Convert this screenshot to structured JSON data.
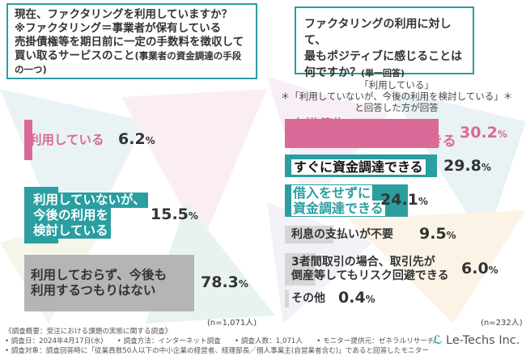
{
  "question_left": {
    "line1": "現在、ファクタリングを利用していますか？",
    "line2": "※ファクタリング＝事業者が保有している",
    "line3": "売掛債権等を期日前に一定の手数料を徴収して",
    "line4": "買い取るサービスのこと",
    "line4_note": "(事業者の資金調達の手段の一つ)"
  },
  "question_right": {
    "line1": "ファクタリングの利用に対して、",
    "line2": "最もポジティブに感じることは",
    "line3": "何ですか？",
    "line3_note": "(単一回答)"
  },
  "subtitle": {
    "line1": "「利用している」",
    "line2": "「利用していないが、今後の利用を検討している」",
    "line3": "と回答した方が回答"
  },
  "n_left": "(n=1,071人)",
  "n_right": "(n=232人)",
  "colors": {
    "pink": "#d96a98",
    "teal": "#2a9ea0",
    "gray": "#b5b5b5",
    "lightgray": "#d6d6d6",
    "accent_bg": "#e7f2f1"
  },
  "chart_data": [
    {
      "type": "bar",
      "categories": [
        "利用している",
        "利用していないが、今後の利用を検討している",
        "利用しておらず、今後も利用するつもりはない"
      ],
      "values": [
        6.2,
        15.5,
        78.3
      ],
      "value_labels": [
        "6.2%",
        "15.5%",
        "78.3%"
      ],
      "unit": "%",
      "n": "(n=1,071人)"
    },
    {
      "type": "bar",
      "categories": [
        "売掛債権の未回収リスクを回避できる",
        "すぐに資金調達できる",
        "借入をせずに資金調達できる",
        "利息の支払いが不要",
        "3者間取引の場合、取引先が倒産等してもリスク回避できる",
        "その他"
      ],
      "values": [
        30.2,
        29.8,
        24.1,
        9.5,
        6.0,
        0.4
      ],
      "value_labels": [
        "30.2%",
        "29.8%",
        "24.1%",
        "9.5%",
        "6.0%",
        "0.4%"
      ],
      "unit": "%",
      "n": "(n=232人)"
    }
  ],
  "left_labels": [
    {
      "l1": "利用している",
      "l2": "",
      "l3": ""
    },
    {
      "l1": "利用していないが、",
      "l2": "今後の利用を",
      "l3": "検討している"
    },
    {
      "l1": "利用しておらず、今後も",
      "l2": "利用するつもりはない",
      "l3": ""
    }
  ],
  "left_value_parts": [
    {
      "num": "6.2",
      "unit": "%"
    },
    {
      "num": "15.5",
      "unit": "%"
    },
    {
      "num": "78.3",
      "unit": "%"
    }
  ],
  "right_labels": [
    {
      "l1": "売掛債権の",
      "l2": "未回収リスクを回避できる"
    },
    {
      "l1": "すぐに資金調達できる",
      "l2": ""
    },
    {
      "l1": "借入をせずに",
      "l2": "資金調達できる"
    },
    {
      "l1": "利息の支払いが不要",
      "l2": ""
    },
    {
      "l1": "3者間取引の場合、取引先が",
      "l2": "倒産等してもリスク回避できる"
    },
    {
      "l1": "その他",
      "l2": ""
    }
  ],
  "right_value_parts": [
    {
      "num": "30.2",
      "unit": "%"
    },
    {
      "num": "29.8",
      "unit": "%"
    },
    {
      "num": "24.1",
      "unit": "%"
    },
    {
      "num": "9.5",
      "unit": "%"
    },
    {
      "num": "6.0",
      "unit": "%"
    },
    {
      "num": "0.4",
      "unit": "%"
    }
  ],
  "footer": {
    "line1": "《調査概要：受注における課題の実態に関する調査》",
    "line2": "• 調査日：2024年4月17日(水)　　• 調査方法：インターネット調査　　• 調査人数：1,071人　　• モニター提供元：ゼネラルリサーチ",
    "line3": "• 調査対象：調査回答時に「従業員数50人以下の中小企業の経営者、経理部長／個人事業主(自営業者含む)」であると回答したモニター"
  },
  "logo": {
    "text": "Le-Techs Inc."
  }
}
